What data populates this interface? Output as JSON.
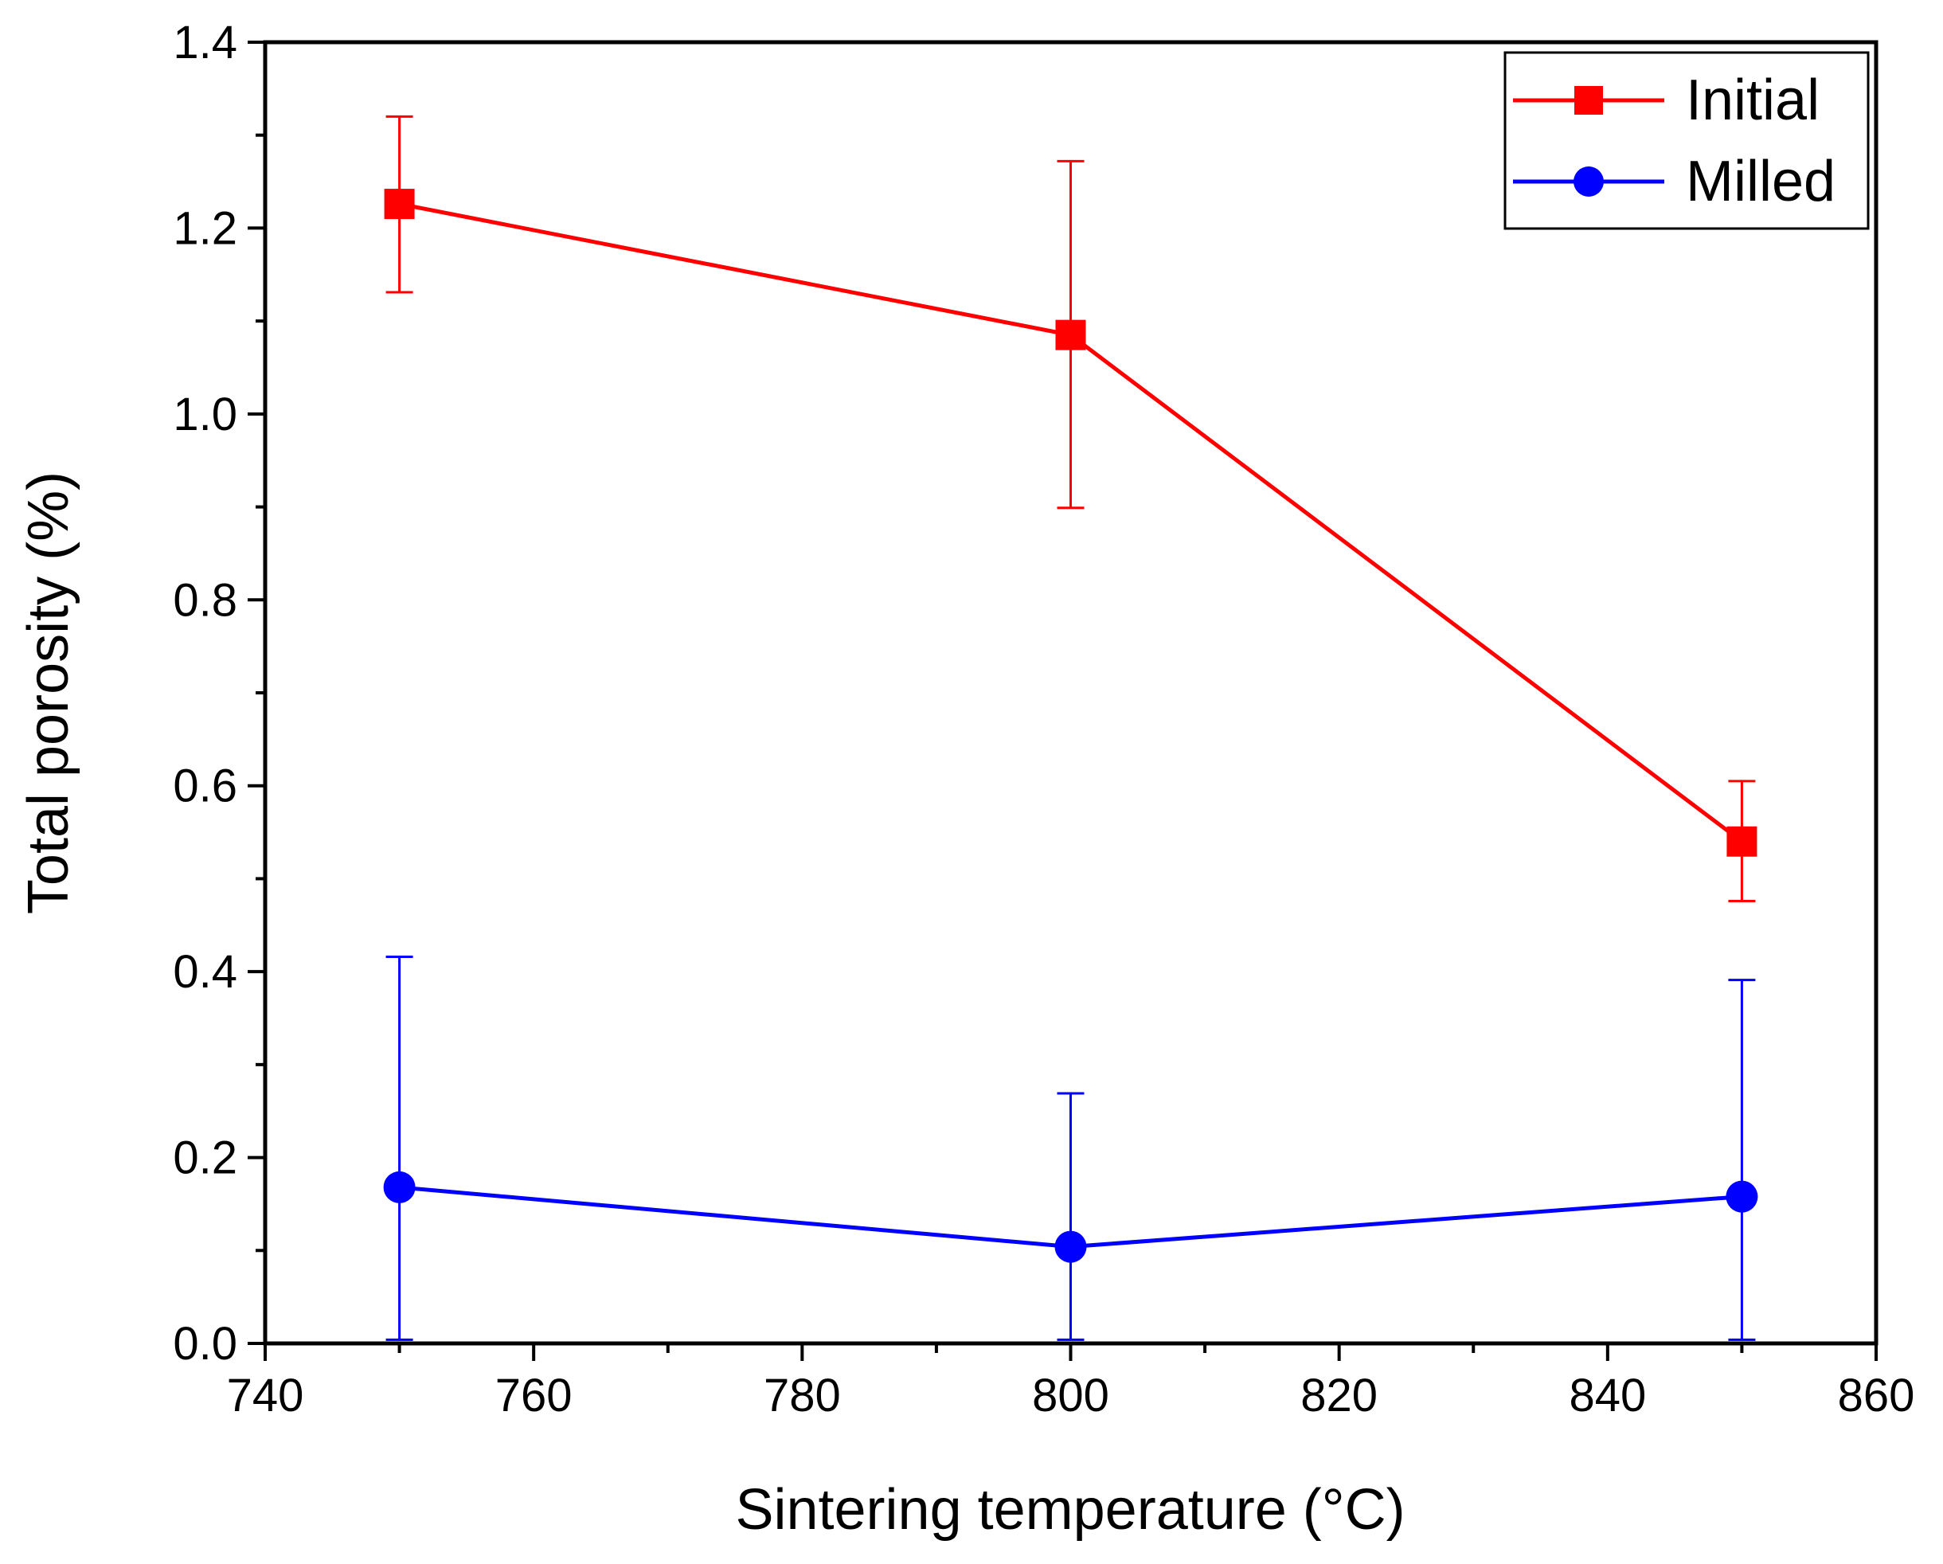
{
  "chart_data": {
    "type": "line",
    "title": "",
    "xlabel": "Sintering temperature (°C)",
    "ylabel": "Total porosity (%)",
    "xlim": [
      740,
      860
    ],
    "ylim": [
      0.0,
      1.4
    ],
    "x_major_ticks": [
      740,
      760,
      780,
      800,
      820,
      840,
      860
    ],
    "x_tick_labels": [
      "740",
      "760",
      "780",
      "800",
      "820",
      "840",
      "860"
    ],
    "y_major_ticks": [
      0.0,
      0.2,
      0.4,
      0.6,
      0.8,
      1.0,
      1.2,
      1.4
    ],
    "y_tick_labels": [
      "0.0",
      "0.2",
      "0.4",
      "0.6",
      "0.8",
      "1.0",
      "1.2",
      "1.4"
    ],
    "grid": false,
    "legend_position": "top-right",
    "series": [
      {
        "name": "Initial",
        "color": "#ff0000",
        "marker": "square",
        "x": [
          750,
          800,
          850
        ],
        "y": [
          1.226,
          1.085,
          0.54
        ],
        "err_low": [
          1.131,
          0.899,
          0.476
        ],
        "err_high": [
          1.32,
          1.272,
          0.605
        ]
      },
      {
        "name": "Milled",
        "color": "#0000ff",
        "marker": "circle",
        "x": [
          750,
          800,
          850
        ],
        "y": [
          0.168,
          0.104,
          0.158
        ],
        "err_low": [
          0.004,
          0.004,
          0.004
        ],
        "err_high": [
          0.416,
          0.269,
          0.391
        ]
      }
    ]
  }
}
